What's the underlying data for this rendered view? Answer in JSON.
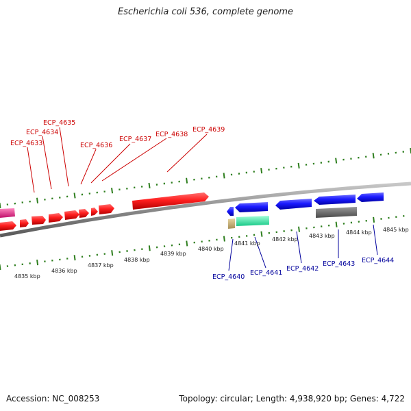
{
  "title": "Escherichia coli 536, complete genome",
  "footer": {
    "accession": "Accession: NC_008253",
    "summary": "Topology: circular; Length: 4,938,920 bp; Genes: 4,722"
  },
  "colors": {
    "tick": "#2f7f1f",
    "backbone": "#888888",
    "forward_gene": "#ff1f1f",
    "forward_label": "#cc0000",
    "reverse_gene": "#1a1aff",
    "reverse_label": "#00009c",
    "pink_gene": "#e8288a",
    "teal_gene": "#2ee8a8",
    "tan_gene": "#c8b27a",
    "gray_gene": "#6b6b6b"
  },
  "ruler_labels": [
    "4835 kbp",
    "4836 kbp",
    "4837 kbp",
    "4838 kbp",
    "4839 kbp",
    "4840 kbp",
    "4841 kbp",
    "4842 kbp",
    "4843 kbp",
    "4844 kbp",
    "4845 kbp"
  ],
  "gene_labels": {
    "forward": [
      "ECP_4633",
      "ECP_4634",
      "ECP_4635",
      "ECP_4636",
      "ECP_4637",
      "ECP_4638",
      "ECP_4639"
    ],
    "reverse": [
      "ECP_4640",
      "ECP_4641",
      "ECP_4642",
      "ECP_4643",
      "ECP_4644"
    ]
  }
}
